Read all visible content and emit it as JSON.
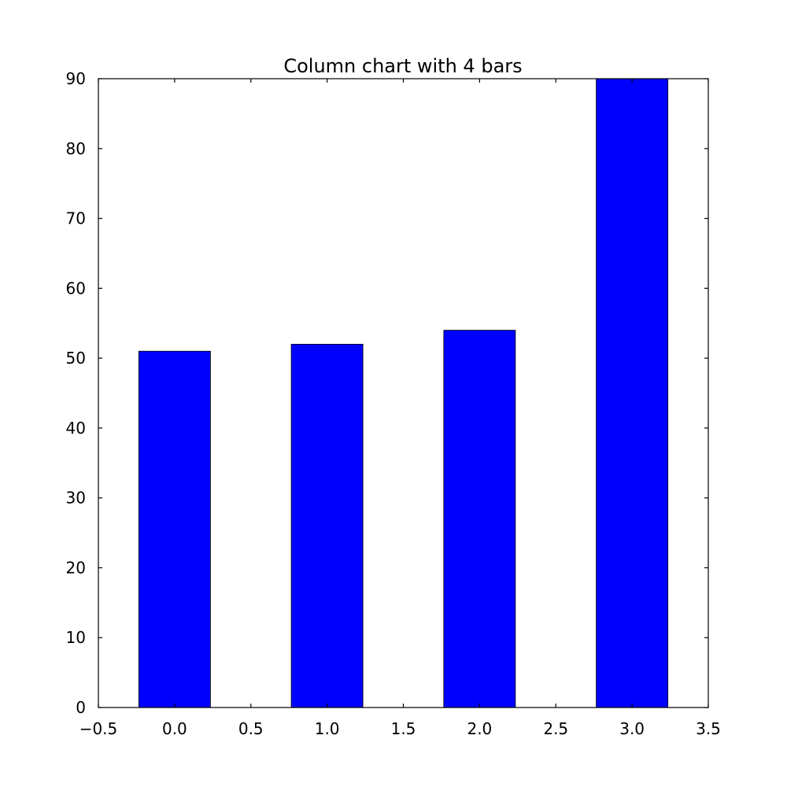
{
  "chart_data": {
    "type": "bar",
    "title": "Column chart with 4 bars",
    "xlabel": "",
    "ylabel": "",
    "x": [
      0,
      1,
      2,
      3
    ],
    "values": [
      51,
      52,
      54,
      90
    ],
    "bar_width": 0.47,
    "xlim": [
      -0.5,
      3.5
    ],
    "ylim": [
      0,
      90
    ],
    "xticks": [
      -0.5,
      0.0,
      0.5,
      1.0,
      1.5,
      2.0,
      2.5,
      3.0,
      3.5
    ],
    "xtick_labels": [
      "−0.5",
      "0.0",
      "0.5",
      "1.0",
      "1.5",
      "2.0",
      "2.5",
      "3.0",
      "3.5"
    ],
    "yticks": [
      0,
      10,
      20,
      30,
      40,
      50,
      60,
      70,
      80,
      90
    ],
    "ytick_labels": [
      "0",
      "10",
      "20",
      "30",
      "40",
      "50",
      "60",
      "70",
      "80",
      "90"
    ],
    "bar_color": "#0000ff",
    "grid": false,
    "legend": "none"
  }
}
